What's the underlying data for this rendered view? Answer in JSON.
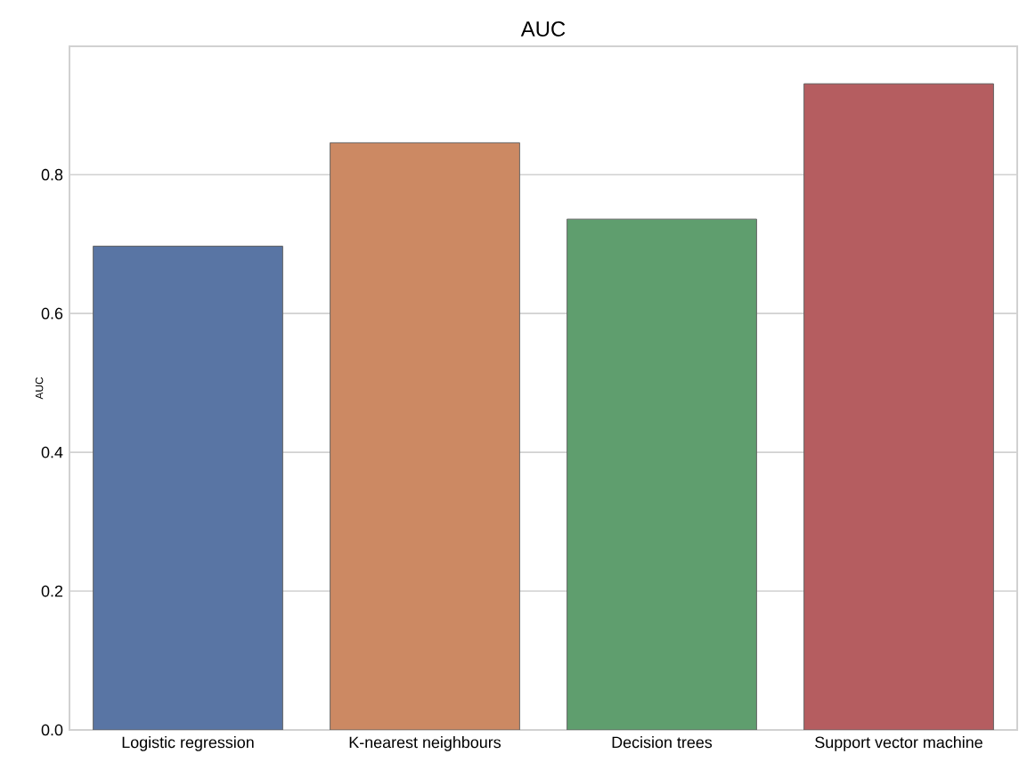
{
  "chart_data": {
    "type": "bar",
    "title": "AUC",
    "ylabel": "AUC",
    "categories": [
      "Logistic regression",
      "K-nearest neighbours",
      "Decision trees",
      "Support vector machine"
    ],
    "values": [
      0.697,
      0.846,
      0.736,
      0.931
    ],
    "colors": [
      "#5975a4",
      "#cc8963",
      "#5f9e6e",
      "#b55d60"
    ],
    "ylim": [
      0,
      0.985
    ],
    "yticks": [
      {
        "value": 0,
        "label": "0.0"
      },
      0.2,
      0.4,
      0.6,
      0.8
    ],
    "grid": "y"
  }
}
